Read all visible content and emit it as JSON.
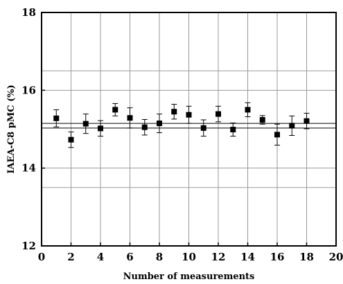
{
  "chart_data": {
    "type": "scatter",
    "title": "",
    "xlabel": "Number of measurements",
    "ylabel": "IAEA-C8 pMC (%)",
    "xlim": [
      0,
      20
    ],
    "ylim": [
      12,
      18
    ],
    "x_ticks": [
      "0",
      "2",
      "4",
      "6",
      "8",
      "10",
      "12",
      "14",
      "16",
      "18",
      "20"
    ],
    "y_ticks": [
      "12",
      "14",
      "16",
      "18"
    ],
    "grid": true,
    "marker": "square",
    "color": "#000000",
    "reference_lines": [
      15.15,
      15.03
    ],
    "extra_gridlines_y": [
      13.5,
      16.5
    ],
    "series": [
      {
        "x": [
          1,
          2,
          3,
          4,
          5,
          6,
          7,
          8,
          9,
          10,
          11,
          12,
          13,
          14,
          15,
          16,
          17,
          18
        ],
        "y": [
          15.28,
          14.73,
          15.14,
          15.02,
          15.5,
          15.29,
          15.05,
          15.15,
          15.45,
          15.37,
          15.03,
          15.39,
          14.99,
          15.5,
          15.24,
          14.86,
          15.09,
          15.21
        ],
        "err": [
          0.22,
          0.2,
          0.25,
          0.2,
          0.16,
          0.26,
          0.2,
          0.24,
          0.19,
          0.22,
          0.21,
          0.2,
          0.17,
          0.18,
          0.11,
          0.27,
          0.25,
          0.2
        ]
      }
    ]
  }
}
